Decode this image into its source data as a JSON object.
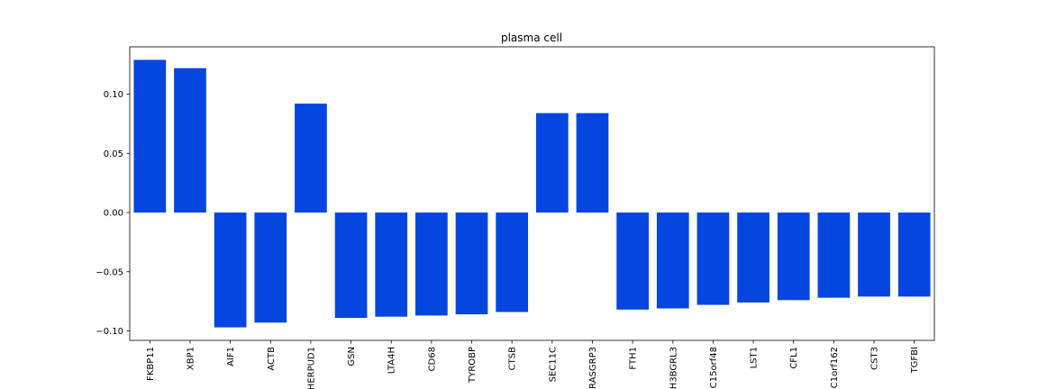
{
  "chart_data": {
    "type": "bar",
    "title": "plasma cell",
    "xlabel": "",
    "ylabel": "",
    "categories": [
      "FKBP11",
      "XBP1",
      "AIF1",
      "ACTB",
      "HERPUD1",
      "GSN",
      "LTA4H",
      "CD68",
      "TYROBP",
      "CTSB",
      "SEC11C",
      "RASGRP3",
      "FTH1",
      "H3BGRL3",
      "C15orf48",
      "LST1",
      "CFL1",
      "C1orf162",
      "CST3",
      "TGFBI"
    ],
    "values": [
      0.129,
      0.122,
      -0.097,
      -0.093,
      0.092,
      -0.089,
      -0.088,
      -0.087,
      -0.086,
      -0.084,
      0.084,
      0.084,
      -0.082,
      -0.081,
      -0.078,
      -0.076,
      -0.074,
      -0.072,
      -0.071,
      -0.071
    ],
    "ylim": [
      -0.108,
      0.14
    ],
    "yticks": [
      0.1,
      0.05,
      0.0,
      -0.05,
      -0.1
    ],
    "ytick_labels": [
      "0.10",
      "0.05",
      "0.00",
      "−0.05",
      "−0.10"
    ],
    "grid": false,
    "bar_color": "#0546e0"
  }
}
